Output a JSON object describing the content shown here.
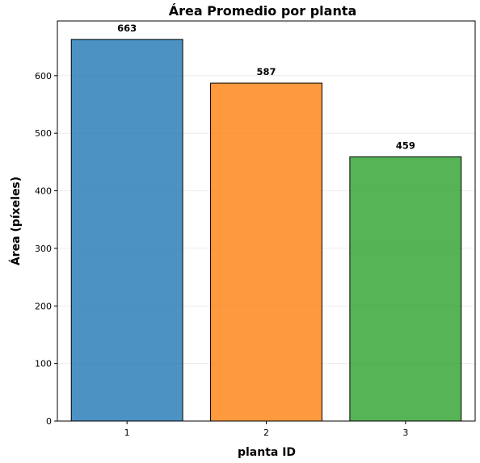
{
  "chart_data": {
    "type": "bar",
    "title": "Área Promedio por planta",
    "xlabel": "planta ID",
    "ylabel": "Área (píxeles)",
    "categories": [
      "1",
      "2",
      "3"
    ],
    "values": [
      663,
      587,
      459
    ],
    "data_labels": [
      "663",
      "587",
      "459"
    ],
    "colors": [
      "#1f77b4",
      "#ff7f0e",
      "#2ca02c"
    ],
    "bar_opacity": 0.8,
    "edge_color": "#000000",
    "ylim": [
      0,
      695
    ],
    "yticks": [
      0,
      100,
      200,
      300,
      400,
      500,
      600
    ],
    "ytick_labels": [
      "0",
      "100",
      "200",
      "300",
      "400",
      "500",
      "600"
    ],
    "grid": "y",
    "legend": "none"
  }
}
